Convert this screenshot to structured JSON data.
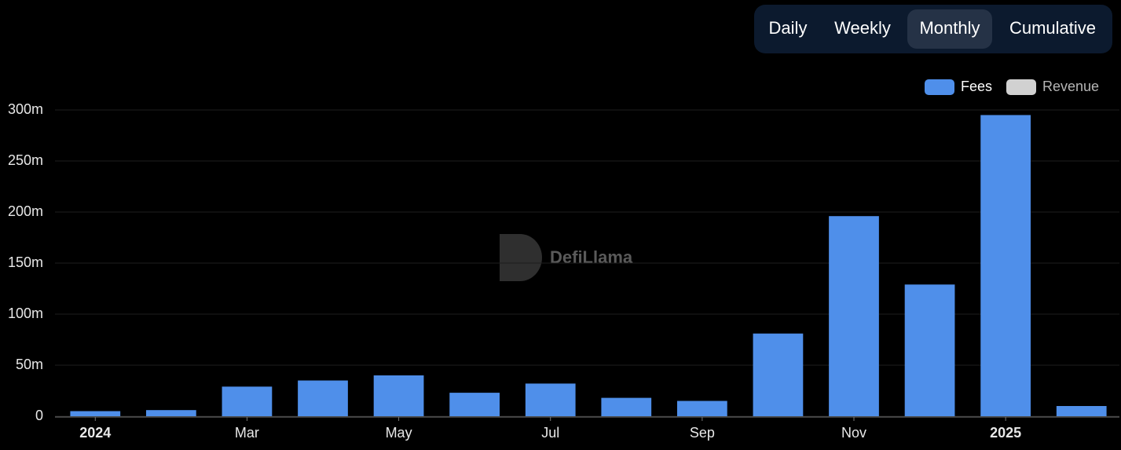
{
  "toggle": {
    "options": [
      "Daily",
      "Weekly",
      "Monthly",
      "Cumulative"
    ],
    "active_index": 2
  },
  "watermark": "DefiLlama",
  "chart_data": {
    "type": "bar",
    "categories": [
      "2024",
      null,
      "Mar",
      null,
      "May",
      null,
      "Jul",
      null,
      "Sep",
      null,
      "Nov",
      null,
      "2025",
      null
    ],
    "series": [
      {
        "name": "Fees",
        "color": "#4f8fea",
        "values": [
          5,
          6,
          29,
          35,
          40,
          23,
          32,
          18,
          15,
          81,
          196,
          129,
          295,
          10
        ]
      }
    ],
    "hidden_series": [
      {
        "name": "Revenue",
        "color": "#d1d1d1"
      }
    ],
    "ylim": [
      0,
      300
    ],
    "yticks": [
      0,
      {
        "value": 50,
        "label": "50m"
      },
      {
        "value": 100,
        "label": "100m"
      },
      {
        "value": 150,
        "label": "150m"
      },
      {
        "value": 200,
        "label": "200m"
      },
      {
        "value": 250,
        "label": "250m"
      },
      {
        "value": 300,
        "label": "300m"
      }
    ],
    "grid": true
  }
}
